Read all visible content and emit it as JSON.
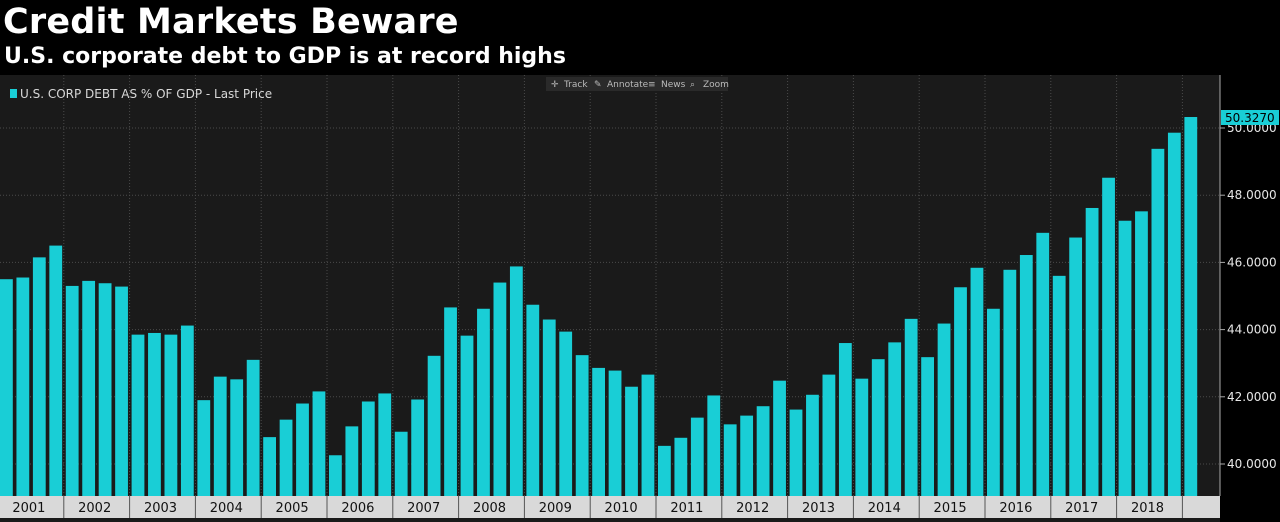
{
  "header": {
    "title": "Credit Markets Beware",
    "subtitle": "U.S. corporate debt to GDP is at record highs"
  },
  "toolbar": {
    "items": [
      {
        "icon": "crosshair-icon",
        "label": "Track"
      },
      {
        "icon": "pencil-icon",
        "label": "Annotate"
      },
      {
        "icon": "news-icon",
        "label": "News"
      },
      {
        "icon": "magnifier-icon",
        "label": "Zoom"
      }
    ]
  },
  "colors": {
    "bar": "#19ced6",
    "background": "#1a1a1a",
    "grid": "#4a4a4a",
    "axis_bar": "#d9d9d9"
  },
  "chart_data": {
    "type": "bar",
    "title": "Credit Markets Beware",
    "subtitle": "U.S. corporate debt to GDP is at record highs",
    "legend": {
      "label": "U.S. CORP DEBT AS % OF GDP - Last Price",
      "placement": "top-left"
    },
    "last_value_label": "50.3270",
    "ylim": [
      39.0,
      52.0
    ],
    "y_ticks": [
      "40.0000",
      "42.0000",
      "44.0000",
      "46.0000",
      "48.0000",
      "50.0000"
    ],
    "y_tick_values": [
      40,
      42,
      44,
      46,
      48,
      50
    ],
    "x_tick_labels": [
      "2001",
      "2002",
      "2003",
      "2004",
      "2005",
      "2006",
      "2007",
      "2008",
      "2009",
      "2010",
      "2011",
      "2012",
      "2013",
      "2014",
      "2015",
      "2016",
      "2017",
      "2018"
    ],
    "grid": true,
    "series": [
      {
        "name": "U.S. CORP DEBT AS % OF GDP - Last Price",
        "values": [
          45.5,
          45.55,
          46.15,
          46.5,
          45.3,
          45.45,
          45.38,
          45.28,
          43.85,
          43.9,
          43.85,
          44.12,
          41.9,
          42.6,
          42.52,
          43.1,
          40.8,
          41.32,
          41.8,
          42.16,
          40.26,
          41.12,
          41.86,
          42.1,
          40.96,
          41.92,
          43.22,
          44.66,
          43.82,
          44.62,
          45.4,
          45.88,
          44.74,
          44.3,
          43.94,
          43.24,
          42.86,
          42.78,
          42.3,
          42.66,
          40.54,
          40.78,
          41.38,
          42.04,
          41.18,
          41.44,
          41.72,
          42.48,
          41.62,
          42.06,
          42.66,
          43.6,
          42.54,
          43.12,
          43.62,
          44.32,
          43.18,
          44.18,
          45.26,
          45.84,
          44.62,
          45.78,
          46.22,
          46.88,
          45.6,
          46.74,
          47.62,
          48.52,
          47.24,
          47.52,
          49.38,
          49.86,
          50.327
        ]
      }
    ]
  }
}
